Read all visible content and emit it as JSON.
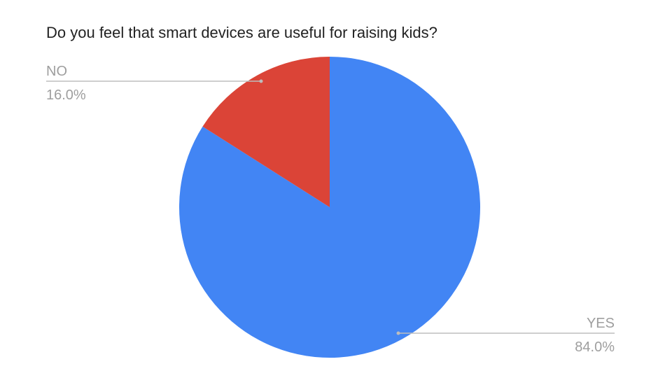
{
  "chart_data": {
    "type": "pie",
    "title": "Do you feel that smart devices are useful for raising kids?",
    "slices": [
      {
        "label": "YES",
        "value": 84.0,
        "display": "84.0%",
        "color": "#4285F4"
      },
      {
        "label": "NO",
        "value": 16.0,
        "display": "16.0%",
        "color": "#DB4437"
      }
    ],
    "start_angle_deg": 0,
    "direction": "clockwise",
    "labels": "outside-with-leader-lines",
    "label_color": "#9E9E9E",
    "leader_color": "#BDBDBD"
  }
}
